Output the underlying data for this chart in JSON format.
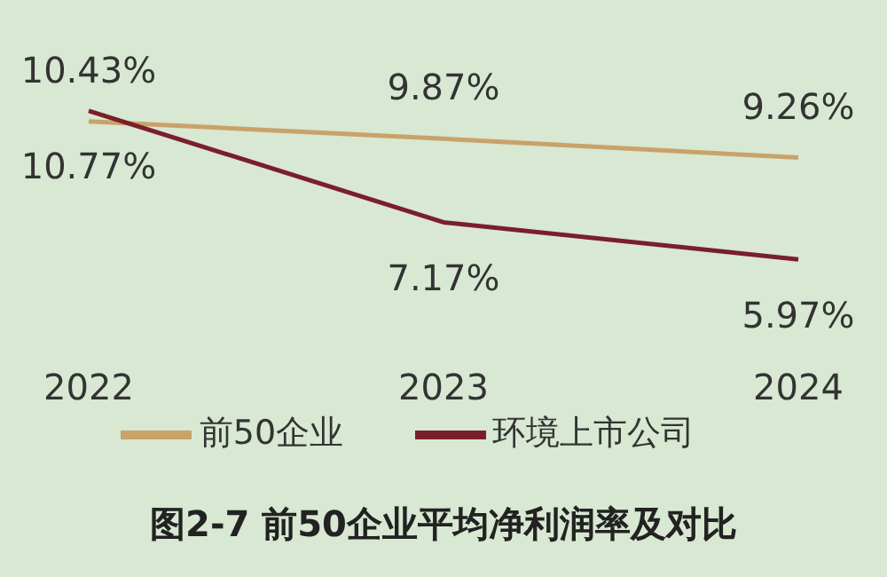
{
  "chart_data": {
    "type": "line",
    "title": "图2-7 前50企业平均净利润率及对比",
    "categories": [
      "2022",
      "2023",
      "2024"
    ],
    "series": [
      {
        "name": "前50企业",
        "color": "#c9a269",
        "values": [
          10.43,
          9.87,
          9.26
        ],
        "value_labels": [
          "10.43%",
          "9.87%",
          "9.26%"
        ]
      },
      {
        "name": "环境上市公司",
        "color": "#7b1e2c",
        "values": [
          10.77,
          7.17,
          5.97
        ],
        "value_labels": [
          "10.77%",
          "7.17%",
          "5.97%"
        ]
      }
    ],
    "legend": "bottom",
    "grid": false,
    "marker": "none",
    "line_style": "solid"
  }
}
